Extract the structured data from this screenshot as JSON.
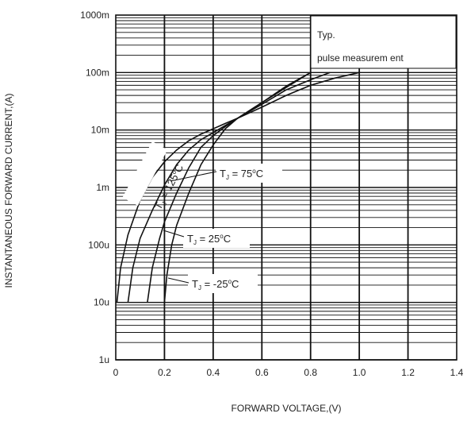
{
  "chart_data": {
    "type": "line",
    "xlabel": "FORWARD VOLTAGE,(V)",
    "ylabel": "INSTANTANEOUS FORWARD CURRENT,(A)",
    "xlim": [
      0,
      1.4
    ],
    "ylim": [
      1e-06,
      1
    ],
    "yscale": "log",
    "x_ticks": [
      "0",
      "0.2",
      "0.4",
      "0.6",
      "0.8",
      "1.0",
      "1.2",
      "1.4"
    ],
    "y_ticks": [
      "1u",
      "10u",
      "100u",
      "1m",
      "10m",
      "100m",
      "1000m"
    ],
    "grid": true,
    "annotation_box": [
      "Typ.",
      "pulse measurem ent"
    ],
    "series": [
      {
        "name": "TJ = 125°C",
        "label_parts": [
          "T",
          "J",
          " = 125",
          "o",
          "C"
        ],
        "points": [
          [
            0.005,
            1e-05
          ],
          [
            0.02,
            4e-05
          ],
          [
            0.05,
            0.00015
          ],
          [
            0.1,
            0.0006
          ],
          [
            0.15,
            0.0015
          ],
          [
            0.2,
            0.0028
          ],
          [
            0.25,
            0.0045
          ],
          [
            0.3,
            0.0065
          ],
          [
            0.35,
            0.0085
          ],
          [
            0.4,
            0.0105
          ],
          [
            0.45,
            0.013
          ],
          [
            0.5,
            0.016
          ],
          [
            0.6,
            0.025
          ],
          [
            0.7,
            0.04
          ],
          [
            0.8,
            0.06
          ],
          [
            0.9,
            0.08
          ],
          [
            1.0,
            0.1
          ]
        ]
      },
      {
        "name": "TJ = 75°C",
        "label_parts": [
          "T",
          "J",
          " = 75",
          "o",
          "C"
        ],
        "points": [
          [
            0.05,
            1e-05
          ],
          [
            0.07,
            4e-05
          ],
          [
            0.1,
            0.00013
          ],
          [
            0.15,
            0.0004
          ],
          [
            0.2,
            0.0011
          ],
          [
            0.25,
            0.0025
          ],
          [
            0.3,
            0.0045
          ],
          [
            0.35,
            0.0068
          ],
          [
            0.4,
            0.009
          ],
          [
            0.45,
            0.012
          ],
          [
            0.5,
            0.016
          ],
          [
            0.6,
            0.028
          ],
          [
            0.7,
            0.05
          ],
          [
            0.8,
            0.075
          ],
          [
            0.88,
            0.1
          ]
        ]
      },
      {
        "name": "TJ = 25°C",
        "label_parts": [
          "T",
          "J",
          " = 25",
          "o",
          "C"
        ],
        "points": [
          [
            0.13,
            1e-05
          ],
          [
            0.15,
            4e-05
          ],
          [
            0.18,
            0.00013
          ],
          [
            0.2,
            0.00025
          ],
          [
            0.25,
            0.0008
          ],
          [
            0.3,
            0.0022
          ],
          [
            0.35,
            0.005
          ],
          [
            0.4,
            0.008
          ],
          [
            0.45,
            0.0115
          ],
          [
            0.5,
            0.016
          ],
          [
            0.6,
            0.03
          ],
          [
            0.7,
            0.055
          ],
          [
            0.8,
            0.1
          ]
        ]
      },
      {
        "name": "TJ = -25°C",
        "label_parts": [
          "T",
          "J",
          " = -25",
          "o",
          "C"
        ],
        "points": [
          [
            0.2,
            1e-05
          ],
          [
            0.21,
            3e-05
          ],
          [
            0.23,
            0.0001
          ],
          [
            0.25,
            0.00022
          ],
          [
            0.3,
            0.0008
          ],
          [
            0.35,
            0.0025
          ],
          [
            0.4,
            0.0055
          ],
          [
            0.45,
            0.0105
          ],
          [
            0.5,
            0.016
          ],
          [
            0.6,
            0.03
          ],
          [
            0.7,
            0.058
          ],
          [
            0.8,
            0.1
          ]
        ]
      }
    ]
  }
}
